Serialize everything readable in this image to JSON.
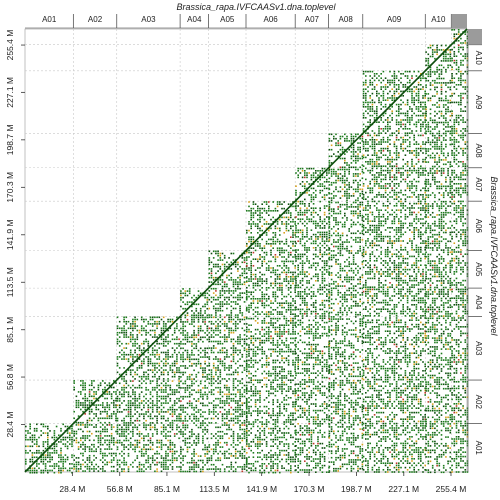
{
  "chart_data": {
    "type": "scatter",
    "subtype": "self dot-plot (upper-triangle masked)",
    "title": "Brassica_rapa.IVFCAASv1.dna.toplevel",
    "ylabel": "Brassica_rapa.IVFCAASv1.dna.toplevel",
    "axis_unit": "M",
    "total_length": 265.0,
    "xlim": [
      0,
      265.0
    ],
    "ylim": [
      0,
      265.0
    ],
    "tick_values": [
      28.4,
      56.8,
      85.1,
      113.5,
      141.9,
      170.3,
      198.7,
      227.1,
      255.4
    ],
    "tick_labels": [
      "28.4 M",
      "56.8 M",
      "85.1 M",
      "113.5 M",
      "141.9 M",
      "170.3 M",
      "198.7 M",
      "227.1 M",
      "255.4 M"
    ],
    "chromosomes": [
      {
        "name": "A01",
        "start": 0.0,
        "end": 29.0
      },
      {
        "name": "A02",
        "start": 29.0,
        "end": 55.0
      },
      {
        "name": "A03",
        "start": 55.0,
        "end": 93.0
      },
      {
        "name": "A04",
        "start": 93.0,
        "end": 110.0
      },
      {
        "name": "A05",
        "start": 110.0,
        "end": 132.5
      },
      {
        "name": "A06",
        "start": 132.5,
        "end": 162.0
      },
      {
        "name": "A07",
        "start": 162.0,
        "end": 182.0
      },
      {
        "name": "A08",
        "start": 182.0,
        "end": 202.5
      },
      {
        "name": "A09",
        "start": 202.5,
        "end": 240.0
      },
      {
        "name": "A10",
        "start": 240.0,
        "end": 255.6
      },
      {
        "name": "",
        "start": 255.6,
        "end": 265.0
      }
    ],
    "grid": true,
    "colors": {
      "dots_primary": "#1d7a1d",
      "dots_dark": "#0e4f0e",
      "dots_secondary": "#d9a31f",
      "dots_red": "#c0392b",
      "grid": "#c8c8c8",
      "top_right_bar": "#9b9b9b"
    }
  }
}
